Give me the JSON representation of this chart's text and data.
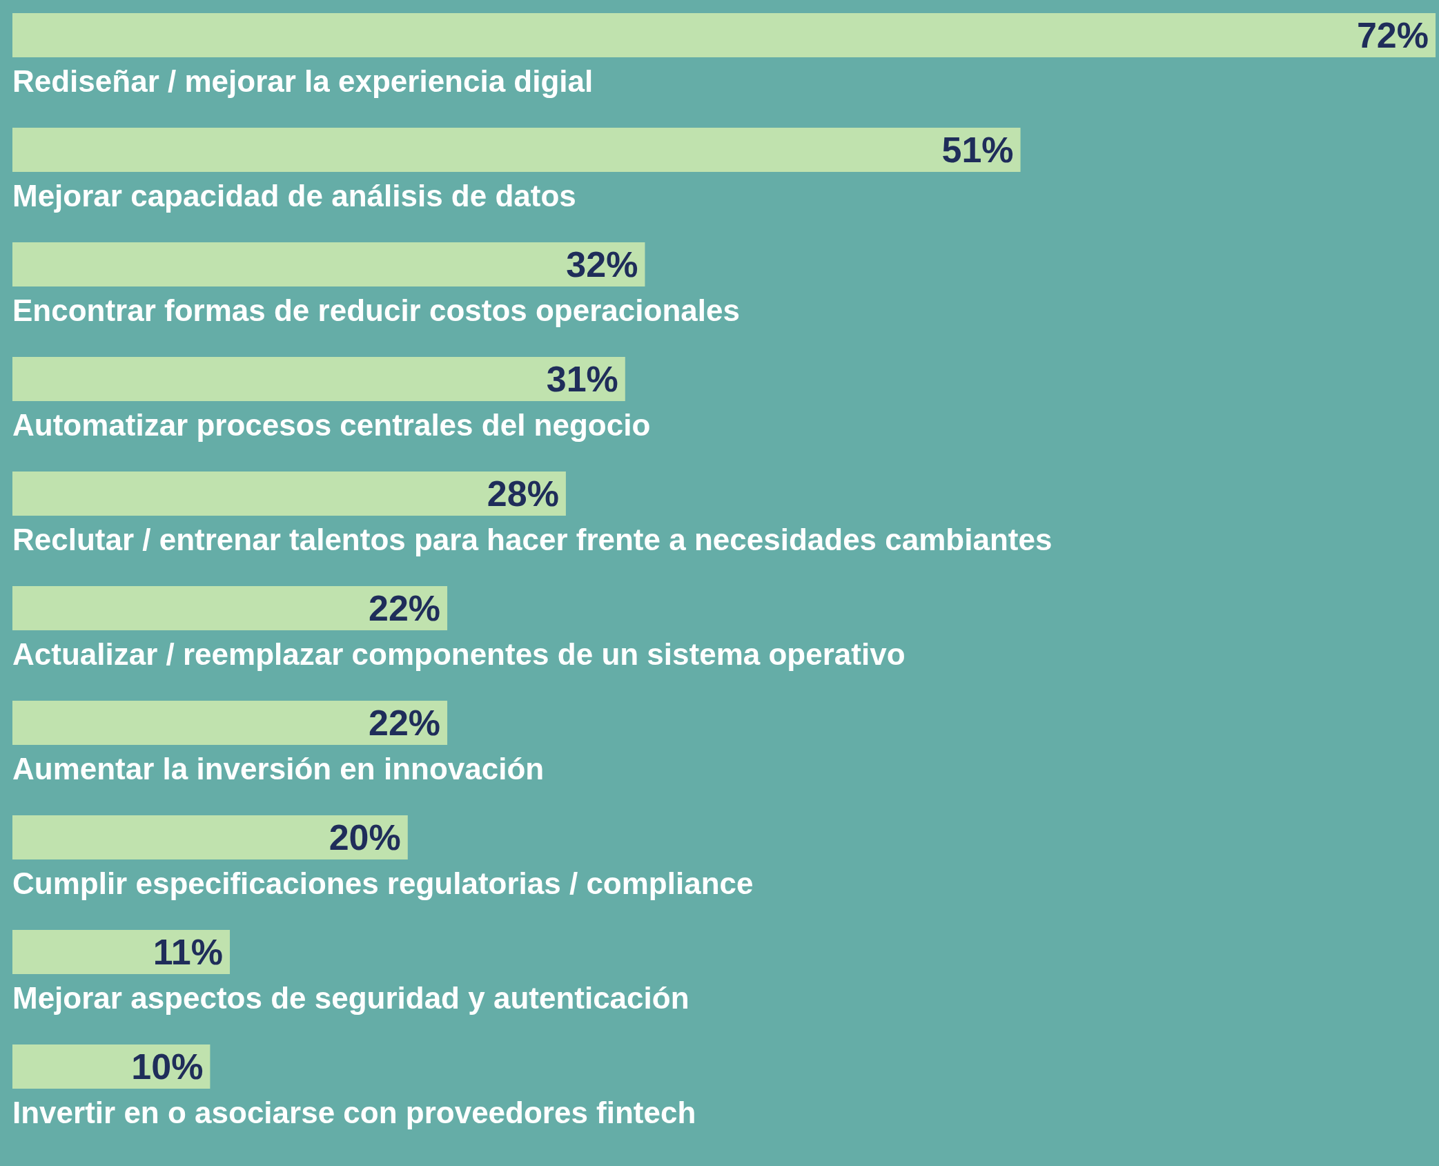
{
  "chart_data": {
    "type": "bar",
    "orientation": "horizontal",
    "relative": false,
    "categories": [
      "Rediseñar / mejorar la experiencia digial",
      "Mejorar capacidad de análisis de datos",
      "Encontrar formas de reducir costos operacionales",
      "Automatizar procesos centrales del negocio",
      "Reclutar / entrenar talentos para hacer frente a necesidades cambiantes",
      "Actualizar / reemplazar componentes de un sistema operativo",
      "Aumentar la inversión en innovación",
      "Cumplir especificaciones regulatorias / compliance",
      "Mejorar aspectos de seguridad y autenticación",
      "Invertir en o asociarse con proveedores fintech"
    ],
    "values": [
      72,
      51,
      32,
      31,
      28,
      22,
      22,
      20,
      11,
      10
    ],
    "value_labels": [
      "72%",
      "51%",
      "32%",
      "31%",
      "28%",
      "22%",
      "22%",
      "20%",
      "11%",
      "10%"
    ],
    "color": "#c0e2ae"
  }
}
